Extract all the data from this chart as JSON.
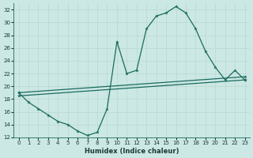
{
  "xlabel": "Humidex (Indice chaleur)",
  "bg_color": "#cce8e4",
  "grid_color": "#b8d8d0",
  "line_color": "#1a6b5e",
  "xlim": [
    -0.5,
    23.5
  ],
  "ylim": [
    12,
    33
  ],
  "xticks": [
    0,
    1,
    2,
    3,
    4,
    5,
    6,
    7,
    8,
    9,
    10,
    11,
    12,
    13,
    14,
    15,
    16,
    17,
    18,
    19,
    20,
    21,
    22,
    23
  ],
  "yticks": [
    12,
    14,
    16,
    18,
    20,
    22,
    24,
    26,
    28,
    30,
    32
  ],
  "line1_x": [
    0,
    1,
    2,
    3,
    4,
    5,
    6,
    7,
    8,
    9,
    10,
    11,
    12,
    13,
    14,
    15,
    16,
    17,
    18,
    19,
    20,
    21,
    22,
    23
  ],
  "line1_y": [
    19.0,
    17.5,
    16.5,
    15.5,
    14.5,
    14.0,
    13.0,
    12.3,
    12.8,
    16.5,
    27.0,
    22.0,
    22.5,
    29.0,
    31.0,
    31.5,
    32.5,
    31.5,
    29.0,
    25.5,
    23.0,
    21.0,
    22.5,
    21.0
  ],
  "line2_x": [
    0,
    23
  ],
  "line2_y": [
    19.0,
    21.5
  ],
  "line3_x": [
    0,
    23
  ],
  "line3_y": [
    18.5,
    21.0
  ]
}
